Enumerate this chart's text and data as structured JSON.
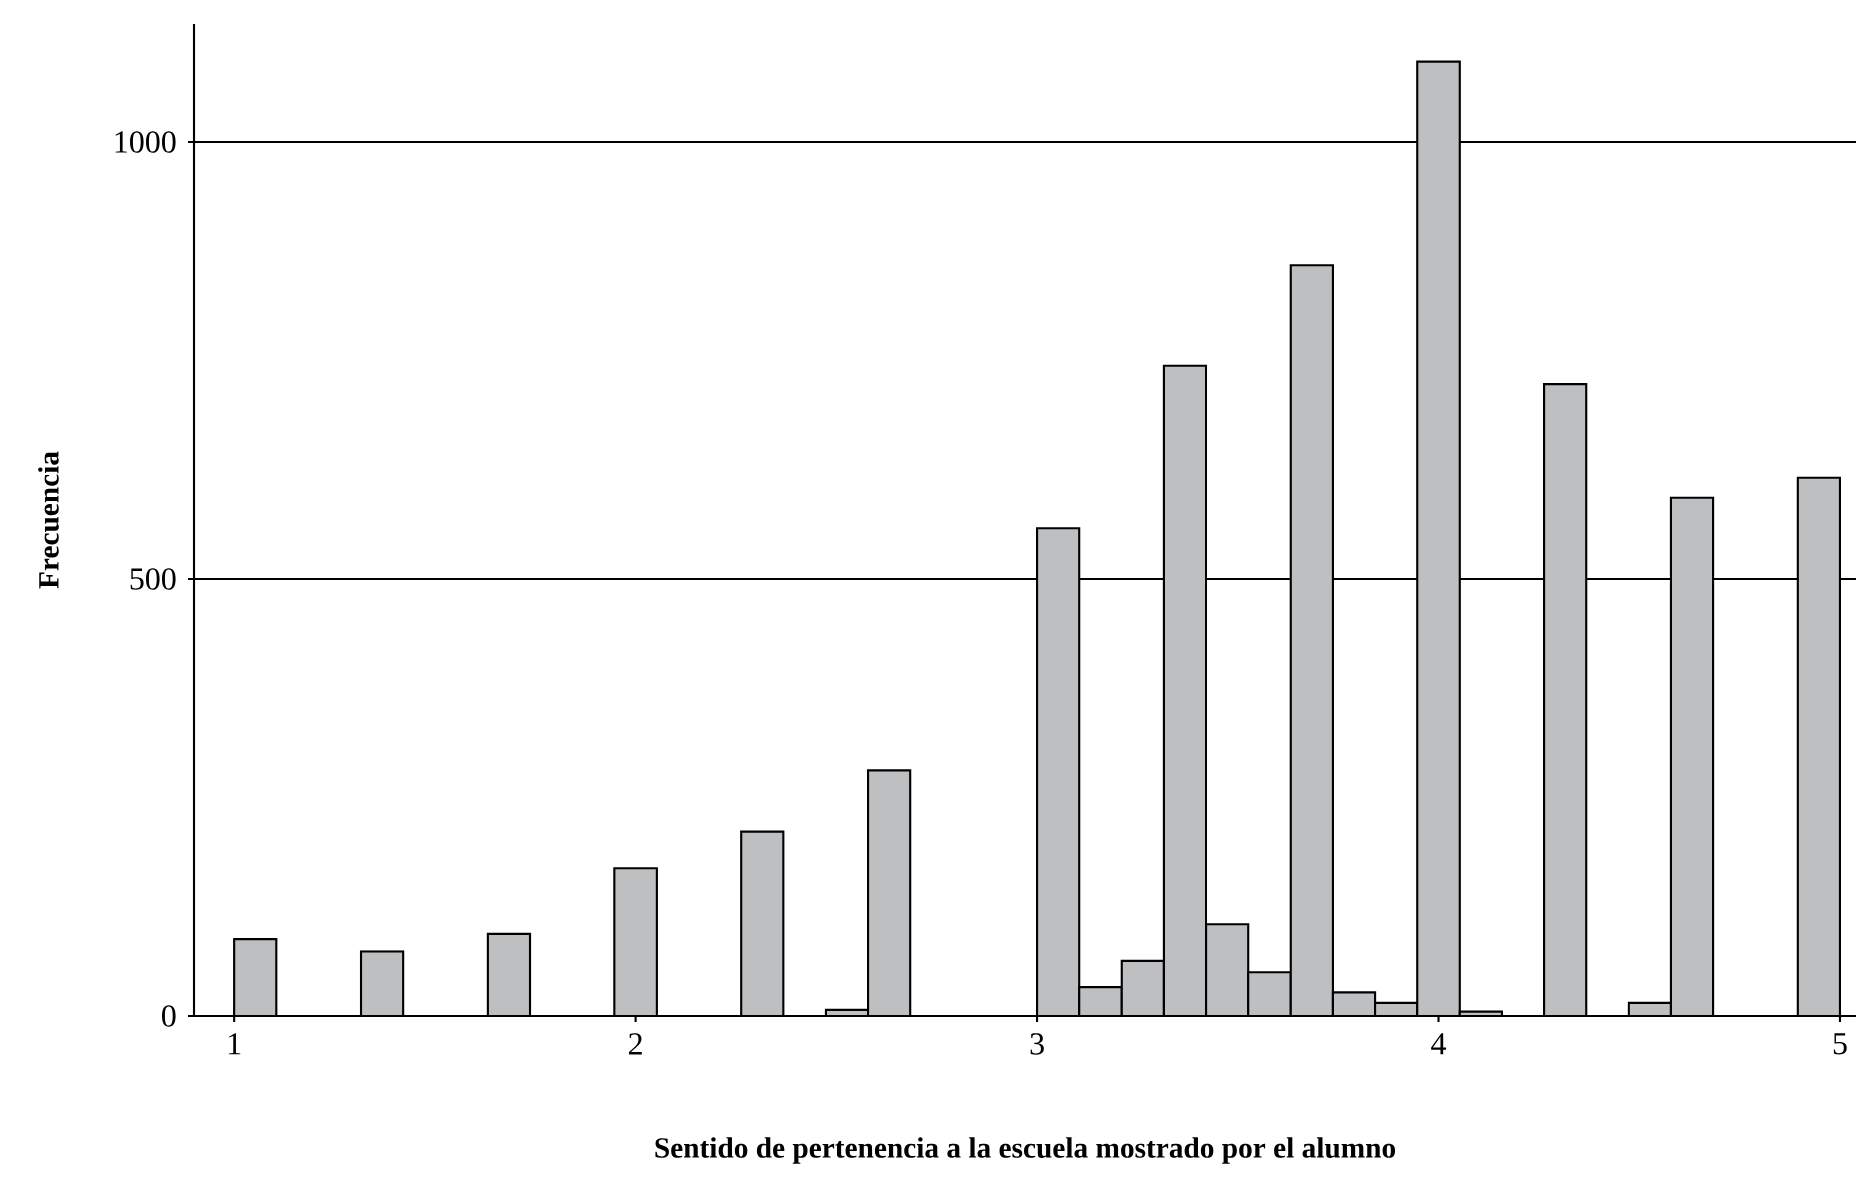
{
  "chart_data": {
    "type": "histogram",
    "xlabel": "Sentido de pertenencia a la escuela mostrado por el alumno",
    "ylabel": "Frecuencia",
    "bins": [
      1.0,
      1.105,
      1.211,
      1.316,
      1.421,
      1.526,
      1.632,
      1.737,
      1.842,
      1.947,
      2.053,
      2.158,
      2.263,
      2.368,
      2.474,
      2.579,
      2.684,
      2.789,
      2.895,
      3.0,
      3.105,
      3.211,
      3.316,
      3.421,
      3.526,
      3.632,
      3.737,
      3.842,
      3.947,
      4.053,
      4.158,
      4.263,
      4.368,
      4.474,
      4.579,
      4.684,
      4.789,
      4.895,
      5.0
    ],
    "values": [
      88,
      0,
      0,
      74,
      0,
      0,
      94,
      0,
      0,
      169,
      0,
      0,
      211,
      0,
      7,
      281,
      0,
      0,
      0,
      558,
      33,
      63,
      744,
      105,
      50,
      859,
      27,
      15,
      1092,
      5,
      0,
      723,
      0,
      15,
      593,
      0,
      0,
      616
    ],
    "color": "#bebfc1",
    "xlim": [
      0.9,
      5.04
    ],
    "ylim": [
      0,
      1135
    ],
    "xticks": [
      1,
      2,
      3,
      4,
      5
    ],
    "yticks": [
      0,
      500,
      1000
    ],
    "grid": "y"
  }
}
